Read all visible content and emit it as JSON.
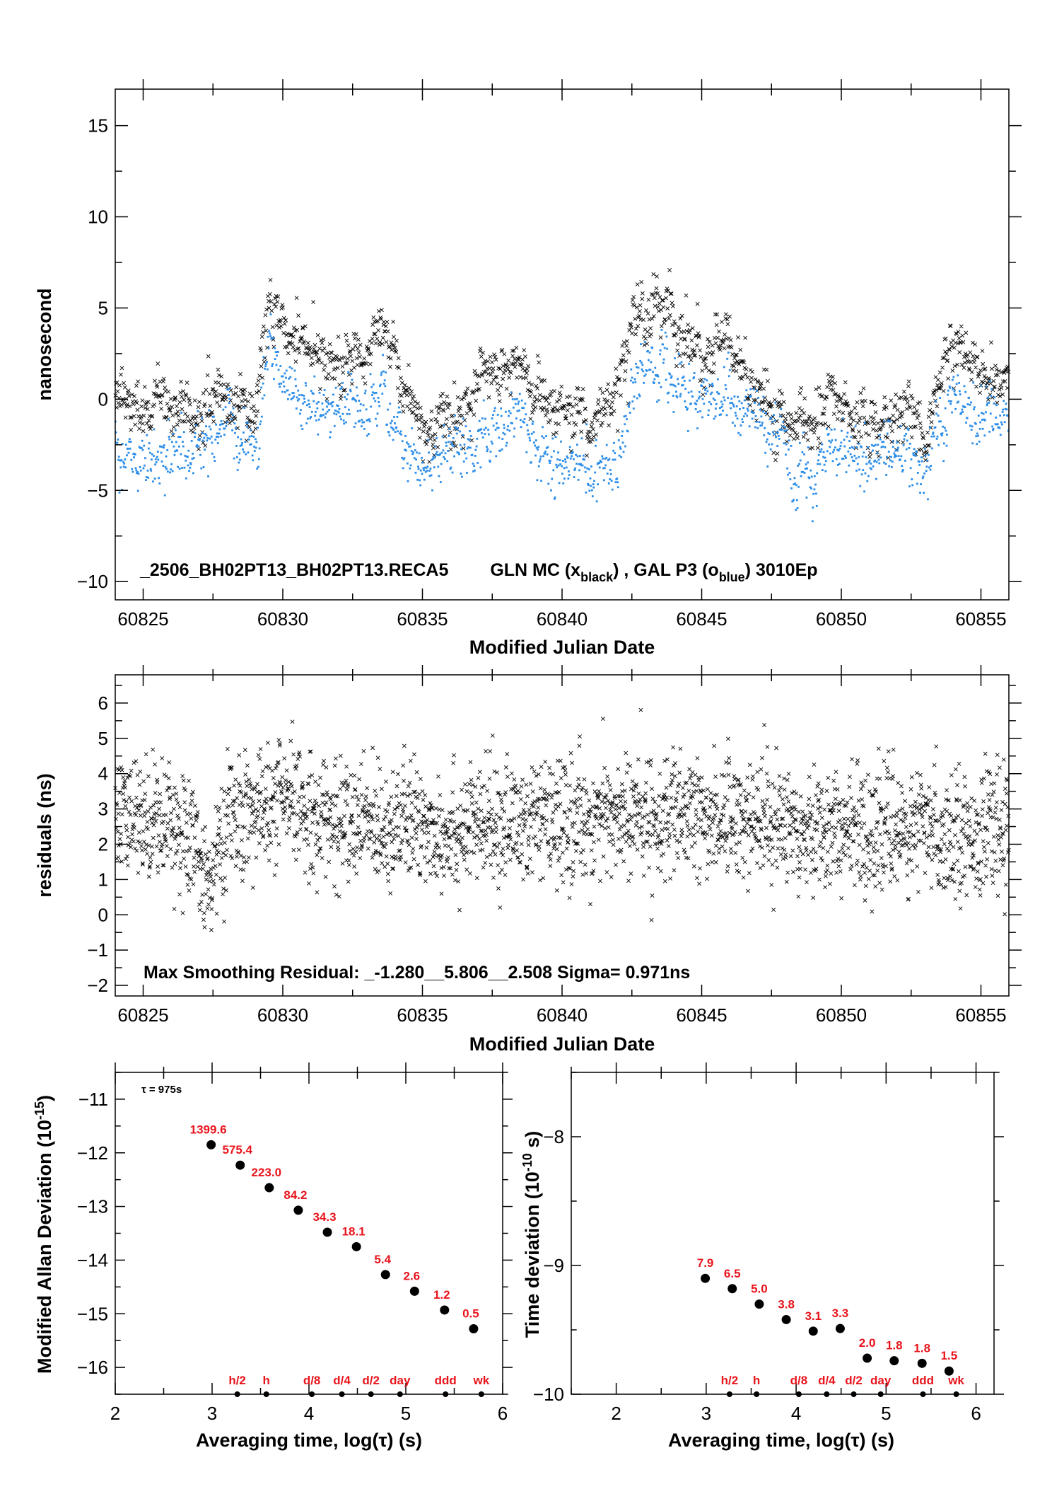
{
  "chart_data": [
    {
      "id": "phase",
      "type": "scatter",
      "xlabel": "Modified Julian Date",
      "ylabel": "nanosecond",
      "xlim": [
        60824,
        60856
      ],
      "ylim": [
        -11,
        17
      ],
      "x_ticks": [
        60825,
        60830,
        60835,
        60840,
        60845,
        60850,
        60855
      ],
      "y_ticks": [
        -10,
        -5,
        0,
        5,
        10,
        15
      ],
      "annotation": {
        "prefix": "_2506_BH02PT13_BH02PT13.RECA5",
        "gln": "GLN MC (x",
        "gln_sub": "black",
        "mid": ") ,  GAL P3 (o",
        "gal_sub": "blue",
        "suffix": ")  3010Ep"
      },
      "series": [
        {
          "marker": "x",
          "color": "#000000",
          "x": [
            60824,
            60825,
            60826,
            60827,
            60828,
            60829,
            60829.5,
            60830,
            60831,
            60832,
            60833,
            60833.6,
            60834,
            60835,
            60836,
            60837,
            60838,
            60838.5,
            60839,
            60840,
            60841,
            60842,
            60842.5,
            60843,
            60843.5,
            60844,
            60845,
            60846,
            60847,
            60848,
            60849,
            60850,
            60851,
            60852,
            60853,
            60854,
            60855,
            60856
          ],
          "y": [
            0.5,
            -0.5,
            -0.5,
            -0.5,
            0.5,
            -0.5,
            5.0,
            4.5,
            2.0,
            2.5,
            2.0,
            4.0,
            1.5,
            -1.5,
            -1.0,
            0.5,
            1.5,
            2.5,
            0.0,
            -0.5,
            -1.5,
            0.0,
            4.5,
            4.5,
            5.5,
            4.0,
            2.5,
            3.0,
            0.0,
            -1.0,
            -1.5,
            -0.5,
            -1.5,
            -0.5,
            -2.0,
            3.5,
            2.0,
            1.0
          ]
        },
        {
          "marker": "o",
          "color": "#2b8de8",
          "x": [
            60824,
            60825,
            60826,
            60827,
            60828,
            60829,
            60829.5,
            60830,
            60831,
            60832,
            60833,
            60833.6,
            60834,
            60835,
            60836,
            60837,
            60838,
            60838.5,
            60839,
            60840,
            60841,
            60842,
            60842.5,
            60843,
            60843.5,
            60844,
            60845,
            60846,
            60847,
            60848,
            60849,
            60850,
            60851,
            60852,
            60853,
            60854,
            60855,
            60856
          ],
          "y": [
            -2.0,
            -3.5,
            -3.0,
            -2.5,
            -2.0,
            -2.5,
            2.5,
            1.0,
            -0.5,
            -0.5,
            -1.0,
            1.0,
            -1.5,
            -4.0,
            -2.5,
            -2.5,
            -1.0,
            -1.0,
            -2.5,
            -3.5,
            -4.0,
            -3.5,
            1.0,
            1.5,
            2.5,
            1.0,
            0.0,
            -0.5,
            -1.0,
            -3.5,
            -4.0,
            -3.0,
            -3.5,
            -2.5,
            -4.5,
            0.5,
            -0.5,
            -1.0
          ]
        }
      ]
    },
    {
      "id": "residuals",
      "type": "scatter",
      "xlabel": "Modified Julian Date",
      "ylabel": "residuals (ns)",
      "xlim": [
        60824,
        60856
      ],
      "ylim": [
        -2.3,
        6.8
      ],
      "x_ticks": [
        60825,
        60830,
        60835,
        60840,
        60845,
        60850,
        60855
      ],
      "y_ticks": [
        -2,
        -1,
        0,
        1,
        2,
        3,
        4,
        5,
        6
      ],
      "annotation": "Max Smoothing Residual: _-1.280__5.806__2.508  Sigma= 0.971ns",
      "series": [
        {
          "marker": "x",
          "color": "#000000",
          "x": [
            60824,
            60826,
            60827.5,
            60828,
            60830,
            60832,
            60834,
            60836,
            60838,
            60840,
            60842,
            60844,
            60846,
            60848,
            60850,
            60852,
            60854,
            60856
          ],
          "y": [
            2.7,
            2.8,
            1.0,
            2.6,
            3.2,
            2.6,
            2.6,
            2.4,
            2.6,
            2.6,
            2.8,
            2.7,
            2.8,
            2.6,
            2.4,
            2.4,
            2.3,
            2.4
          ]
        }
      ]
    },
    {
      "id": "mdev",
      "type": "scatter",
      "xlabel": "Averaging time, log(τ) (s)",
      "ylabel_base": "Modified Allan Deviation (10",
      "ylabel_exp": "-15",
      "ylabel_close": ")",
      "xlim": [
        2,
        6
      ],
      "ylim": [
        -16.5,
        -10.5
      ],
      "x_ticks": [
        2,
        3,
        4,
        5,
        6
      ],
      "y_ticks": [
        -16,
        -15,
        -14,
        -13,
        -12,
        -11
      ],
      "tau_note": "τ = 975s",
      "points": {
        "x": [
          2.99,
          3.29,
          3.59,
          3.89,
          4.19,
          4.49,
          4.79,
          5.09,
          5.4,
          5.7
        ],
        "y": [
          -11.85,
          -12.23,
          -12.65,
          -13.07,
          -13.48,
          -13.75,
          -14.27,
          -14.58,
          -14.93,
          -15.28
        ],
        "labels": [
          "1399.6",
          "575.4",
          "223.0",
          "84.2",
          "34.3",
          "18.1",
          "5.4",
          "2.6",
          "1.2",
          "0.5"
        ]
      },
      "markers": {
        "x": [
          3.26,
          3.56,
          4.03,
          4.34,
          4.64,
          4.94,
          5.41,
          5.78
        ],
        "labels": [
          "h/2",
          "h",
          "d/8",
          "d/4",
          "d/2",
          "day",
          "ddd",
          "wk"
        ]
      }
    },
    {
      "id": "tdev",
      "type": "scatter",
      "xlabel": "Averaging time, log(τ) (s)",
      "ylabel_base": "Time deviation (10",
      "ylabel_exp": "-10",
      "ylabel_close": " s)",
      "xlim": [
        1.5,
        6.2
      ],
      "ylim": [
        -10,
        -7.5
      ],
      "x_ticks": [
        2,
        3,
        4,
        5,
        6
      ],
      "y_ticks": [
        -10,
        -9,
        -8
      ],
      "points": {
        "x": [
          2.99,
          3.29,
          3.59,
          3.89,
          4.19,
          4.49,
          4.79,
          5.09,
          5.4,
          5.7
        ],
        "y": [
          -9.1,
          -9.18,
          -9.3,
          -9.42,
          -9.51,
          -9.49,
          -9.72,
          -9.74,
          -9.76,
          -9.82
        ],
        "labels": [
          "7.9",
          "6.5",
          "5.0",
          "3.8",
          "3.1",
          "3.3",
          "2.0",
          "1.8",
          "1.8",
          "1.5"
        ]
      },
      "markers": {
        "x": [
          3.26,
          3.56,
          4.03,
          4.34,
          4.64,
          4.94,
          5.41,
          5.78
        ],
        "labels": [
          "h/2",
          "h",
          "d/8",
          "d/4",
          "d/2",
          "day",
          "ddd",
          "wk"
        ]
      }
    }
  ]
}
